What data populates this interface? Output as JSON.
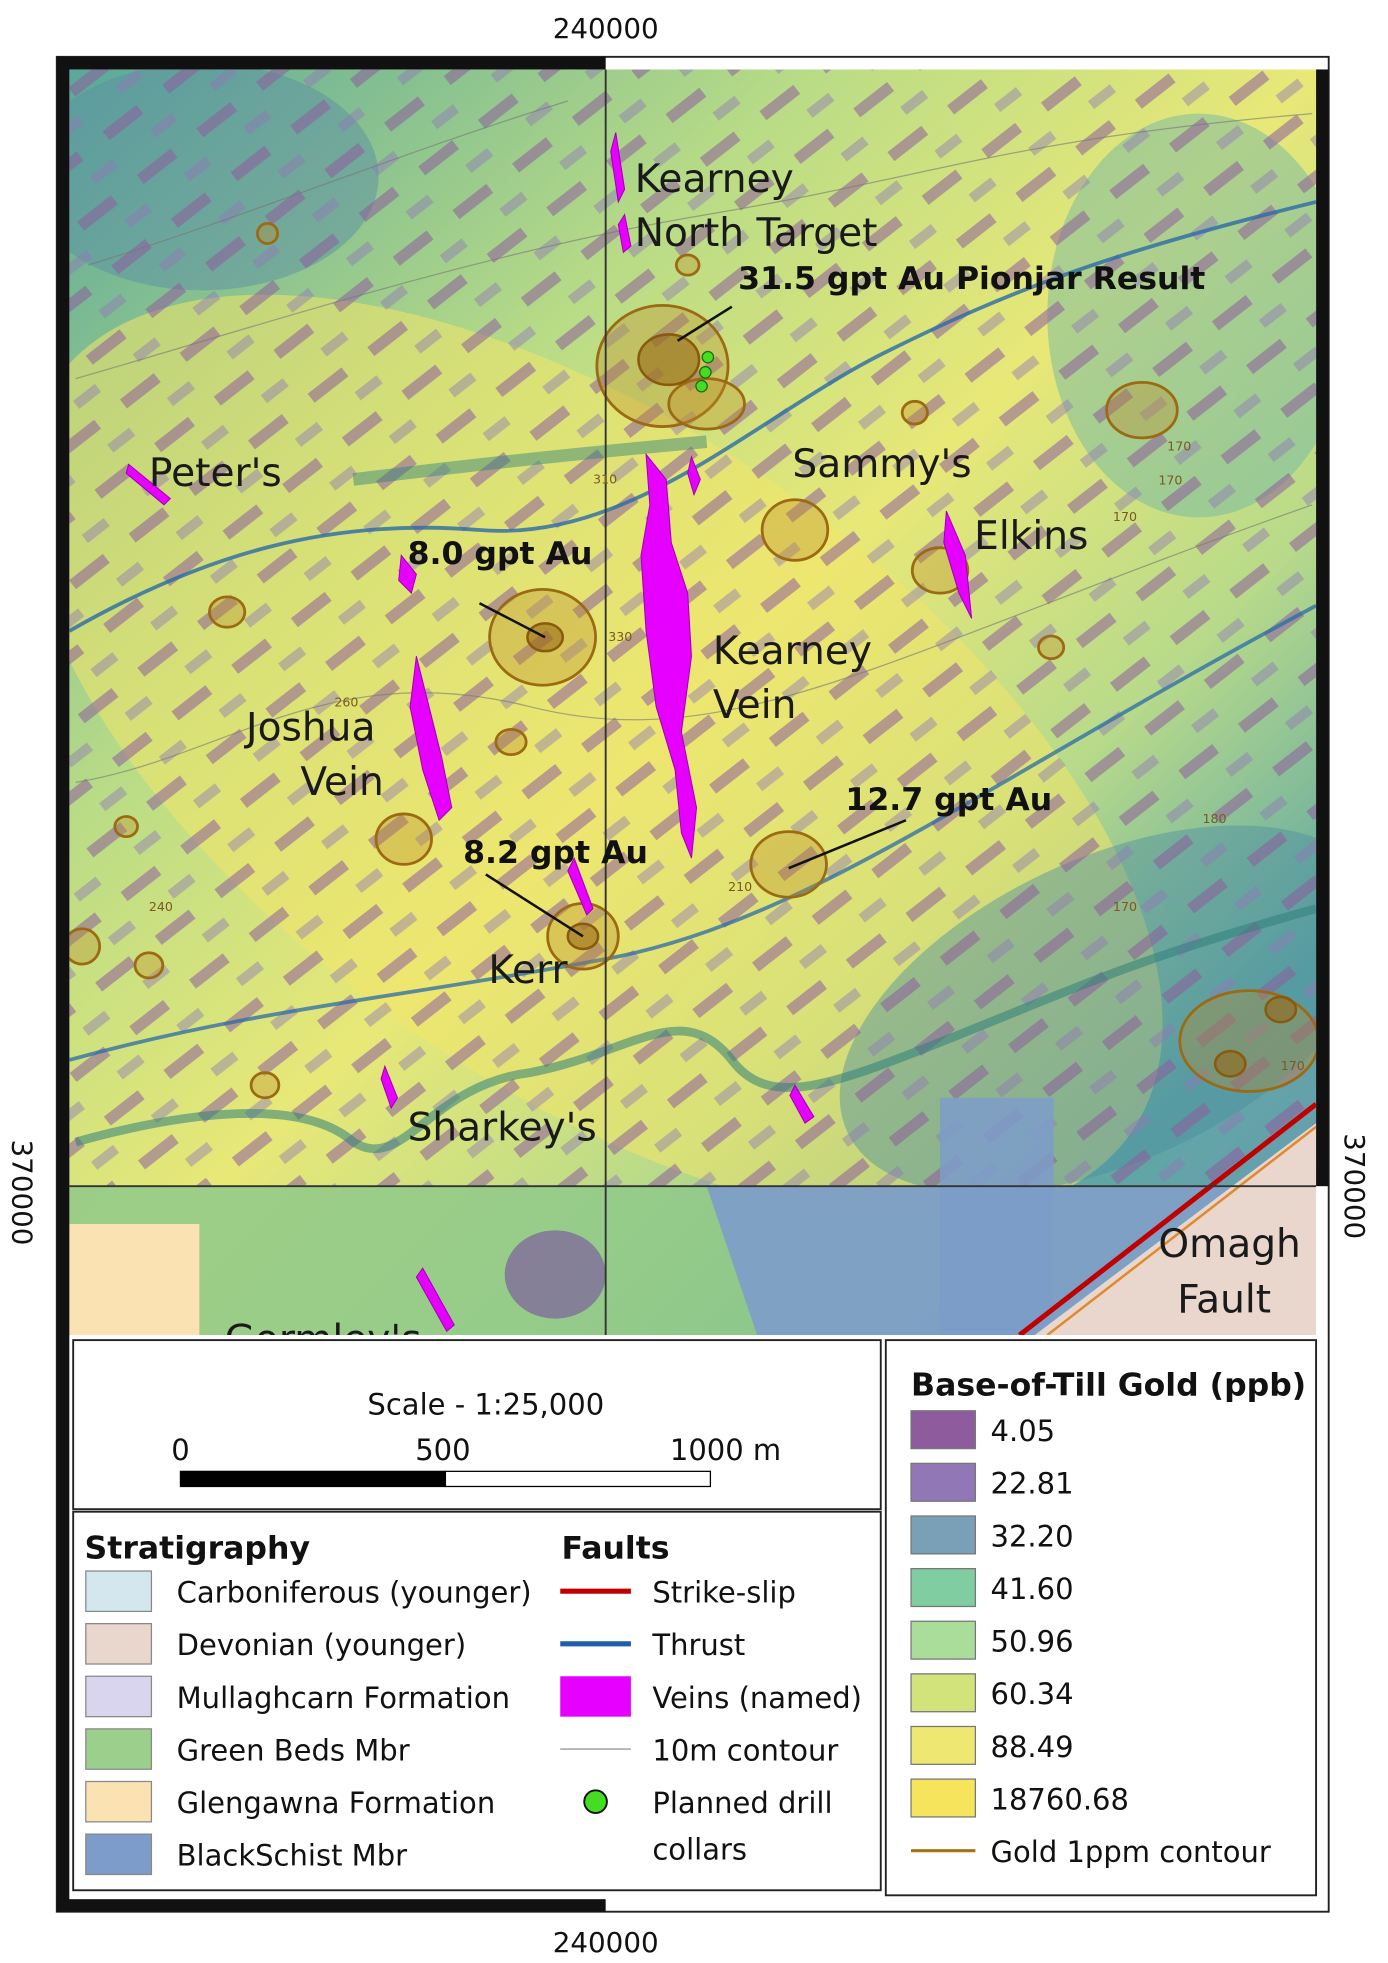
{
  "grid_labels": {
    "top": "240000",
    "bottom": "240000",
    "left": "370000",
    "right": "370000"
  },
  "map_labels": [
    {
      "lines": [
        "Kearney",
        "North Target"
      ]
    },
    {
      "lines": [
        "Peter's"
      ]
    },
    {
      "lines": [
        "Sammy's"
      ]
    },
    {
      "lines": [
        "Elkins"
      ]
    },
    {
      "lines": [
        "Kearney",
        "Vein"
      ]
    },
    {
      "lines": [
        "Joshua",
        "Vein"
      ]
    },
    {
      "lines": [
        "Kerr"
      ]
    },
    {
      "lines": [
        "Sharkey's"
      ]
    },
    {
      "lines": [
        "Omagh",
        "Fault"
      ]
    },
    {
      "lines": [
        "Gormley's"
      ]
    }
  ],
  "assay_results": [
    "31.5 gpt Au Pionjar Result",
    "8.0 gpt Au",
    "8.2 gpt Au",
    "12.7 gpt Au"
  ],
  "contour_labels": [
    "310",
    "330",
    "260",
    "240",
    "210",
    "170",
    "170",
    "170",
    "180",
    "170",
    "170"
  ],
  "scale": {
    "title": "Scale - 1:25,000",
    "labels": [
      "0",
      "500",
      "1000 m"
    ]
  },
  "stratigraphy": {
    "title": "Stratigraphy",
    "items": [
      {
        "label": "Carboniferous (younger)",
        "color": "#d4e7ef"
      },
      {
        "label": "Devonian (younger)",
        "color": "#e9d6cc"
      },
      {
        "label": "Mullaghcarn Formation",
        "color": "#d9d5ee"
      },
      {
        "label": "Green Beds Mbr",
        "color": "#9ccf8b"
      },
      {
        "label": "Glengawna Formation",
        "color": "#fbe2b2"
      },
      {
        "label": "BlackSchist Mbr",
        "color": "#7d9cca"
      }
    ]
  },
  "faults": {
    "title": "Faults",
    "items": [
      {
        "label": [
          "Strike-slip"
        ],
        "symbol": "line",
        "color": "#c00000"
      },
      {
        "label": [
          "Thrust"
        ],
        "symbol": "line",
        "color": "#1f5fa8"
      },
      {
        "label": [
          "Veins (named)"
        ],
        "symbol": "box",
        "color": "#e600ff"
      },
      {
        "label": [
          "10m contour"
        ],
        "symbol": "thin",
        "color": "#9a9a9a"
      },
      {
        "label": [
          "Planned drill",
          "collars"
        ],
        "symbol": "dot",
        "color": "#44dd22"
      }
    ]
  },
  "gold_legend": {
    "title": "Base-of-Till Gold (ppb)",
    "items": [
      {
        "label": "4.05",
        "color": "#8e5c9c"
      },
      {
        "label": "22.81",
        "color": "#9177b6"
      },
      {
        "label": "32.20",
        "color": "#7aa0b8"
      },
      {
        "label": "41.60",
        "color": "#7fcda1"
      },
      {
        "label": "50.96",
        "color": "#a9dd99"
      },
      {
        "label": "60.34",
        "color": "#d2e37b"
      },
      {
        "label": "88.49",
        "color": "#eee872"
      },
      {
        "label": "18760.68",
        "color": "#f6e45c"
      }
    ],
    "contour": {
      "label": "Gold 1ppm contour",
      "color": "#a57418"
    }
  }
}
